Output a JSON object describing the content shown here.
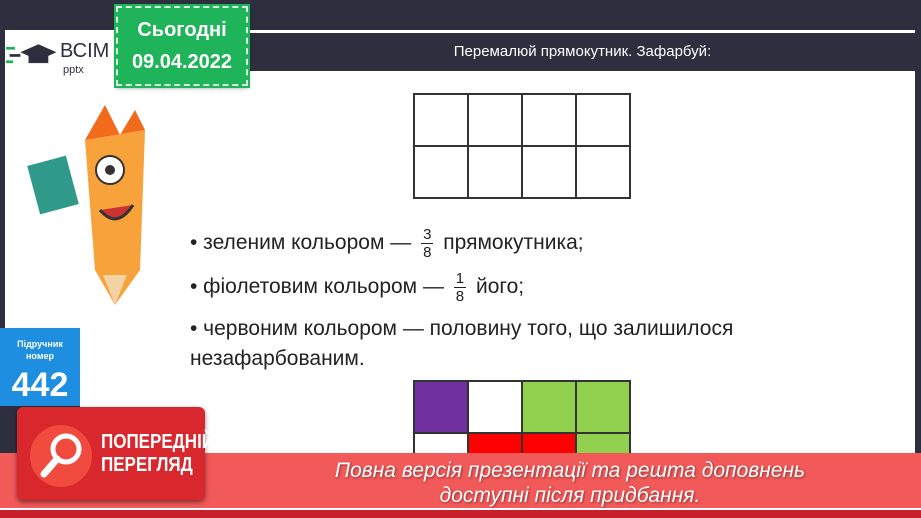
{
  "date_badge": {
    "label": "Сьогодні",
    "date": "09.04.2022"
  },
  "logo": {
    "text": "ВСІМ",
    "sub": "pptx"
  },
  "header": {
    "title": "Перемалюй прямокутник. Зафарбуй:"
  },
  "bullets": [
    {
      "before": "• зеленим кольором  —",
      "num": "3",
      "den": "8",
      "after": "прямокутника;"
    },
    {
      "before": "• фіолетовим кольором  —",
      "num": "1",
      "den": "8",
      "after": "його;"
    },
    {
      "line1": "• червоним кольором  — половину того, що залишилося",
      "line2": "незафарбованим."
    }
  ],
  "textbook": {
    "label1": "Підручник",
    "label2": "номер",
    "number": "442"
  },
  "colored_grid": {
    "cells": [
      "#7030a0",
      "#ffffff",
      "#92d050",
      "#92d050",
      "#ffffff",
      "#ff0000",
      "#ff0000",
      "#92d050"
    ]
  },
  "preview_button": {
    "line1": "ПОПЕРЕДНІЙ",
    "line2": "ПЕРЕГЛЯД"
  },
  "banner": {
    "line1": "Повна версія презентації та решта доповнень",
    "line2": "доступні після придбання."
  },
  "colors": {
    "background": "#2d2f3e",
    "date_green": "#1fb45a",
    "badge_blue": "#1e8fe0",
    "banner_red": "#f25959"
  }
}
